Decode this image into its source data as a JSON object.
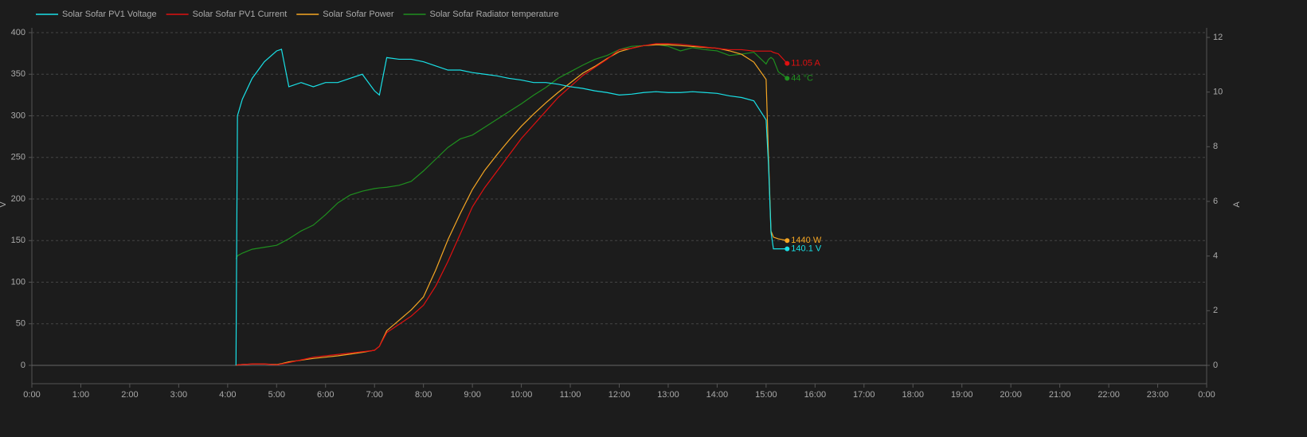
{
  "chart_data": {
    "type": "line",
    "ylabel": "V",
    "y2label": "A",
    "x": [
      4.17,
      4.2,
      4.3,
      4.5,
      4.75,
      5.0,
      5.1,
      5.25,
      5.5,
      5.75,
      6.0,
      6.25,
      6.5,
      6.75,
      7.0,
      7.1,
      7.25,
      7.5,
      7.75,
      8.0,
      8.25,
      8.5,
      8.75,
      9.0,
      9.25,
      9.5,
      9.75,
      10.0,
      10.25,
      10.5,
      10.75,
      11.0,
      11.25,
      11.5,
      11.75,
      12.0,
      12.25,
      12.5,
      12.75,
      13.0,
      13.25,
      13.5,
      13.75,
      14.0,
      14.25,
      14.5,
      14.75,
      15.0,
      15.05,
      15.1,
      15.15,
      15.25,
      15.43
    ],
    "xlim": [
      0,
      24
    ],
    "xticks": [
      {
        "value": 0,
        "label": "0:00"
      },
      {
        "value": 1,
        "label": "1:00"
      },
      {
        "value": 2,
        "label": "2:00"
      },
      {
        "value": 3,
        "label": "3:00"
      },
      {
        "value": 4,
        "label": "4:00"
      },
      {
        "value": 5,
        "label": "5:00"
      },
      {
        "value": 6,
        "label": "6:00"
      },
      {
        "value": 7,
        "label": "7:00"
      },
      {
        "value": 8,
        "label": "8:00"
      },
      {
        "value": 9,
        "label": "9:00"
      },
      {
        "value": 10,
        "label": "10:00"
      },
      {
        "value": 11,
        "label": "11:00"
      },
      {
        "value": 12,
        "label": "12:00"
      },
      {
        "value": 13,
        "label": "13:00"
      },
      {
        "value": 14,
        "label": "14:00"
      },
      {
        "value": 15,
        "label": "15:00"
      },
      {
        "value": 16,
        "label": "16:00"
      },
      {
        "value": 17,
        "label": "17:00"
      },
      {
        "value": 18,
        "label": "18:00"
      },
      {
        "value": 19,
        "label": "19:00"
      },
      {
        "value": 20,
        "label": "20:00"
      },
      {
        "value": 21,
        "label": "21:00"
      },
      {
        "value": 22,
        "label": "22:00"
      },
      {
        "value": 23,
        "label": "23:00"
      },
      {
        "value": 24,
        "label": "0:00"
      }
    ],
    "ylim": [
      0,
      400
    ],
    "yticks": [
      0,
      50,
      100,
      150,
      200,
      250,
      300,
      350,
      400
    ],
    "y2lim": [
      0,
      12
    ],
    "y2ticks": [
      0,
      2,
      4,
      6,
      8,
      10,
      12
    ],
    "y3lim": [
      0,
      3840
    ],
    "y4lim": [
      0,
      51
    ],
    "grid": true,
    "legend": "top-left",
    "series": [
      {
        "name": "Solar Sofar PV1 Voltage",
        "color": "#19e0e6",
        "axis": "y",
        "last_value_label": "140.1 V",
        "values": [
          0,
          300,
          320,
          345,
          365,
          378,
          380,
          335,
          340,
          335,
          340,
          340,
          345,
          350,
          330,
          325,
          370,
          368,
          368,
          365,
          360,
          355,
          355,
          352,
          350,
          348,
          345,
          343,
          340,
          340,
          338,
          335,
          333,
          330,
          328,
          325,
          326,
          328,
          329,
          328,
          328,
          329,
          328,
          327,
          324,
          322,
          318,
          295,
          240,
          160,
          140.1,
          140.1,
          140.1
        ]
      },
      {
        "name": "Solar Sofar PV1 Current",
        "color": "#e01010",
        "axis": "y2",
        "last_value_label": "11.05 A",
        "values": [
          0,
          0.02,
          0.03,
          0.05,
          0.05,
          0.02,
          0.05,
          0.1,
          0.2,
          0.3,
          0.35,
          0.4,
          0.45,
          0.5,
          0.55,
          0.7,
          1.2,
          1.5,
          1.8,
          2.2,
          2.9,
          3.8,
          4.8,
          5.8,
          6.5,
          7.1,
          7.7,
          8.3,
          8.8,
          9.3,
          9.8,
          10.2,
          10.6,
          10.9,
          11.2,
          11.55,
          11.6,
          11.7,
          11.77,
          11.77,
          11.75,
          11.7,
          11.65,
          11.6,
          11.55,
          11.55,
          11.5,
          11.5,
          11.5,
          11.5,
          11.45,
          11.4,
          11.05
        ]
      },
      {
        "name": "Solar Sofar Power",
        "color": "#f5a623",
        "axis": "y3",
        "last_value_label": "1440 W",
        "values": [
          0,
          5,
          10,
          15,
          15,
          10,
          20,
          40,
          60,
          80,
          95,
          110,
          130,
          150,
          175,
          220,
          400,
          520,
          640,
          790,
          1100,
          1450,
          1750,
          2030,
          2250,
          2430,
          2600,
          2760,
          2900,
          3030,
          3150,
          3260,
          3370,
          3450,
          3540,
          3620,
          3660,
          3690,
          3700,
          3700,
          3690,
          3680,
          3670,
          3660,
          3630,
          3590,
          3500,
          3300,
          2380,
          1550,
          1480,
          1460,
          1440
        ]
      },
      {
        "name": "Solar Sofar Radiator temperature",
        "color": "#1f8f1f",
        "axis": "y4",
        "last_value_label": "44 °C",
        "values": [
          16.3,
          16.8,
          17.2,
          17.8,
          18.1,
          18.4,
          18.8,
          19.4,
          20.6,
          21.5,
          23.1,
          24.9,
          26.1,
          26.7,
          27.1,
          27.2,
          27.3,
          27.6,
          28.2,
          29.8,
          31.6,
          33.4,
          34.7,
          35.3,
          36.5,
          37.7,
          38.9,
          40.1,
          41.4,
          42.6,
          44,
          45,
          46,
          46.9,
          47.5,
          48.4,
          48.9,
          49,
          49.2,
          48.9,
          48.2,
          48.7,
          48.4,
          48.2,
          47.5,
          47.7,
          48,
          46.2,
          46.9,
          47.2,
          46.9,
          45,
          44
        ]
      }
    ]
  }
}
